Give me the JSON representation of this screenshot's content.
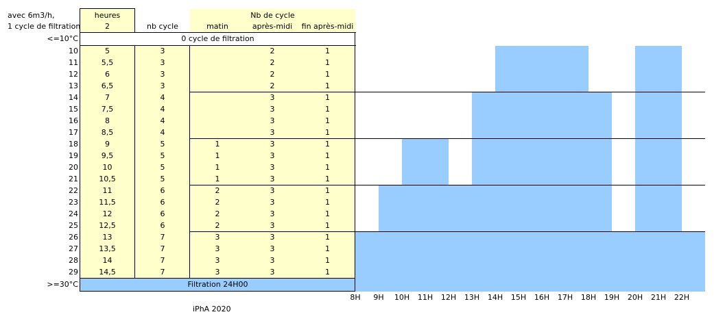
{
  "header": {
    "line1": "avec 6m3/h,",
    "line2": "1 cycle de filtration",
    "heures": "heures",
    "heures_val": "2",
    "nb_cycle": "nb cycle",
    "nb_de_cycle": "Nb de cycle",
    "matin": "matin",
    "apres_midi": "après-midi",
    "fin_apres_midi": "fin après-midi"
  },
  "low_row": {
    "label": "<=10°C",
    "text": "0 cycle de filtration"
  },
  "high_row": {
    "label": ">=30°C",
    "text": "Filtration 24H00"
  },
  "rows": [
    {
      "t": "10",
      "h": "5",
      "n": "3",
      "m": "",
      "a": "2",
      "f": "1"
    },
    {
      "t": "11",
      "h": "5,5",
      "n": "3",
      "m": "",
      "a": "2",
      "f": "1"
    },
    {
      "t": "12",
      "h": "6",
      "n": "3",
      "m": "",
      "a": "2",
      "f": "1"
    },
    {
      "t": "13",
      "h": "6,5",
      "n": "3",
      "m": "",
      "a": "2",
      "f": "1"
    },
    {
      "t": "14",
      "h": "7",
      "n": "4",
      "m": "",
      "a": "3",
      "f": "1"
    },
    {
      "t": "15",
      "h": "7,5",
      "n": "4",
      "m": "",
      "a": "3",
      "f": "1"
    },
    {
      "t": "16",
      "h": "8",
      "n": "4",
      "m": "",
      "a": "3",
      "f": "1"
    },
    {
      "t": "17",
      "h": "8,5",
      "n": "4",
      "m": "",
      "a": "3",
      "f": "1"
    },
    {
      "t": "18",
      "h": "9",
      "n": "5",
      "m": "1",
      "a": "3",
      "f": "1"
    },
    {
      "t": "19",
      "h": "9,5",
      "n": "5",
      "m": "1",
      "a": "3",
      "f": "1"
    },
    {
      "t": "20",
      "h": "10",
      "n": "5",
      "m": "1",
      "a": "3",
      "f": "1"
    },
    {
      "t": "21",
      "h": "10,5",
      "n": "5",
      "m": "1",
      "a": "3",
      "f": "1"
    },
    {
      "t": "22",
      "h": "11",
      "n": "6",
      "m": "2",
      "a": "3",
      "f": "1"
    },
    {
      "t": "23",
      "h": "11,5",
      "n": "6",
      "m": "2",
      "a": "3",
      "f": "1"
    },
    {
      "t": "24",
      "h": "12",
      "n": "6",
      "m": "2",
      "a": "3",
      "f": "1"
    },
    {
      "t": "25",
      "h": "12,5",
      "n": "6",
      "m": "2",
      "a": "3",
      "f": "1"
    },
    {
      "t": "26",
      "h": "13",
      "n": "7",
      "m": "3",
      "a": "3",
      "f": "1"
    },
    {
      "t": "27",
      "h": "13,5",
      "n": "7",
      "m": "3",
      "a": "3",
      "f": "1"
    },
    {
      "t": "28",
      "h": "14",
      "n": "7",
      "m": "3",
      "a": "3",
      "f": "1"
    },
    {
      "t": "29",
      "h": "14,5",
      "n": "7",
      "m": "3",
      "a": "3",
      "f": "1"
    }
  ],
  "schedule": {
    "hour_labels": [
      "8H",
      "9H",
      "10H",
      "11H",
      "12H",
      "13H",
      "14H",
      "15H",
      "16H",
      "17H",
      "18H",
      "19H",
      "20H",
      "21H",
      "22H"
    ],
    "blocks": [
      {
        "temps": "10-13",
        "intervals": [
          [
            14,
            18
          ],
          [
            20,
            22
          ]
        ]
      },
      {
        "temps": "14-17",
        "intervals": [
          [
            13,
            19
          ],
          [
            20,
            22
          ]
        ]
      },
      {
        "temps": "18-21",
        "intervals": [
          [
            10,
            12
          ],
          [
            13,
            19
          ],
          [
            20,
            22
          ]
        ]
      },
      {
        "temps": "22-25",
        "intervals": [
          [
            9,
            19
          ],
          [
            20,
            22
          ]
        ]
      },
      {
        "temps": "26-29",
        "intervals": [
          [
            8,
            23
          ]
        ]
      },
      {
        "temps": ">=30",
        "intervals": [
          [
            8,
            23
          ]
        ]
      }
    ],
    "fill_color": "#99ccff"
  },
  "footer": "iPhA 2020"
}
